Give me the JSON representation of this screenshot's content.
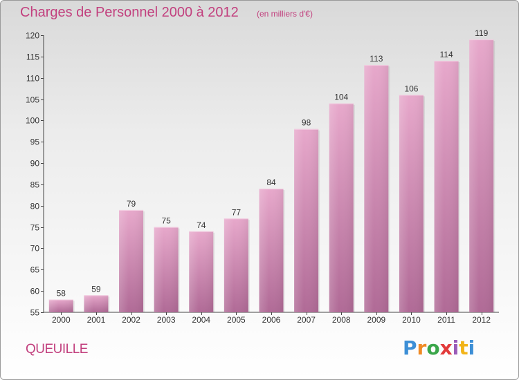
{
  "title": "Charges de Personnel 2000 à 2012",
  "subtitle": "(en milliers d'€)",
  "commune": "QUEUILLE",
  "logo": {
    "name": "Proxiti",
    "letters": [
      "P",
      "r",
      "o",
      "x",
      "i",
      "t",
      "i"
    ]
  },
  "colors": {
    "bar_light": "#e7a8cb",
    "bar_dark": "#b06a96",
    "title": "#c2407e"
  },
  "chart_data": {
    "type": "bar",
    "title": "Charges de Personnel 2000 à 2012",
    "subtitle": "(en milliers d'€)",
    "categories": [
      "2000",
      "2001",
      "2002",
      "2003",
      "2004",
      "2005",
      "2006",
      "2007",
      "2008",
      "2009",
      "2010",
      "2011",
      "2012"
    ],
    "values": [
      58,
      59,
      79,
      75,
      74,
      77,
      84,
      98,
      104,
      113,
      106,
      114,
      119
    ],
    "ylim": [
      55,
      120
    ],
    "yticks": [
      55,
      60,
      65,
      70,
      75,
      80,
      85,
      90,
      95,
      100,
      105,
      110,
      115,
      120
    ],
    "grid": false,
    "legend": "none"
  }
}
